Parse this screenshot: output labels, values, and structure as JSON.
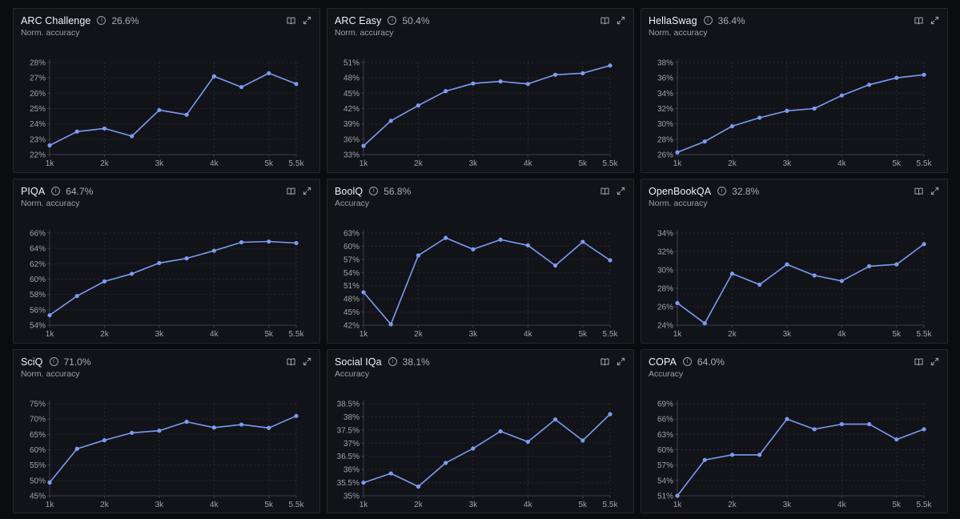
{
  "icons": {
    "info": "info-icon",
    "book": "book-open-icon",
    "expand": "expand-icon"
  },
  "colors": {
    "line": "#7c9cf2",
    "grid": "#262833",
    "axis": "#3a3d49",
    "tick_text": "#9ea3ae"
  },
  "panels": [
    {
      "title": "ARC Challenge",
      "score": "26.6%",
      "subtitle": "Norm. accuracy"
    },
    {
      "title": "ARC Easy",
      "score": "50.4%",
      "subtitle": "Norm. accuracy"
    },
    {
      "title": "HellaSwag",
      "score": "36.4%",
      "subtitle": "Norm. accuracy"
    },
    {
      "title": "PIQA",
      "score": "64.7%",
      "subtitle": "Norm. accuracy"
    },
    {
      "title": "BoolQ",
      "score": "56.8%",
      "subtitle": "Accuracy"
    },
    {
      "title": "OpenBookQA",
      "score": "32.8%",
      "subtitle": "Norm. accuracy"
    },
    {
      "title": "SciQ",
      "score": "71.0%",
      "subtitle": "Norm. accuracy"
    },
    {
      "title": "Social IQa",
      "score": "38.1%",
      "subtitle": "Accuracy"
    },
    {
      "title": "COPA",
      "score": "64.0%",
      "subtitle": "Accuracy"
    }
  ],
  "chart_data": [
    {
      "type": "line",
      "title": "ARC Challenge",
      "x": [
        1000,
        1500,
        2000,
        2500,
        3000,
        3500,
        4000,
        4500,
        5000,
        5500
      ],
      "x_ticks": [
        1000,
        2000,
        3000,
        4000,
        5000,
        5500
      ],
      "x_tick_labels": [
        "1k",
        "2k",
        "3k",
        "4k",
        "5k",
        "5.5k"
      ],
      "y": [
        22.6,
        23.5,
        23.7,
        23.2,
        24.9,
        24.6,
        27.1,
        26.4,
        27.3,
        26.6
      ],
      "ylim": [
        22,
        28
      ],
      "y_ticks": [
        22,
        23,
        24,
        25,
        26,
        27,
        28
      ],
      "y_tick_labels": [
        "22%",
        "23%",
        "24%",
        "25%",
        "26%",
        "27%",
        "28%"
      ],
      "grid": true
    },
    {
      "type": "line",
      "title": "ARC Easy",
      "x": [
        1000,
        1500,
        2000,
        2500,
        3000,
        3500,
        4000,
        4500,
        5000,
        5500
      ],
      "x_ticks": [
        1000,
        2000,
        3000,
        4000,
        5000,
        5500
      ],
      "x_tick_labels": [
        "1k",
        "2k",
        "3k",
        "4k",
        "5k",
        "5.5k"
      ],
      "y": [
        34.7,
        39.6,
        42.6,
        45.4,
        46.9,
        47.3,
        46.8,
        48.6,
        48.9,
        50.4
      ],
      "ylim": [
        33,
        51
      ],
      "y_ticks": [
        33,
        36,
        39,
        42,
        45,
        48,
        51
      ],
      "y_tick_labels": [
        "33%",
        "36%",
        "39%",
        "42%",
        "45%",
        "48%",
        "51%"
      ],
      "grid": true
    },
    {
      "type": "line",
      "title": "HellaSwag",
      "x": [
        1000,
        1500,
        2000,
        2500,
        3000,
        3500,
        4000,
        4500,
        5000,
        5500
      ],
      "x_ticks": [
        1000,
        2000,
        3000,
        4000,
        5000,
        5500
      ],
      "x_tick_labels": [
        "1k",
        "2k",
        "3k",
        "4k",
        "5k",
        "5.5k"
      ],
      "y": [
        26.3,
        27.7,
        29.7,
        30.8,
        31.7,
        32.0,
        33.7,
        35.1,
        36.0,
        36.4
      ],
      "ylim": [
        26,
        38
      ],
      "y_ticks": [
        26,
        28,
        30,
        32,
        34,
        36,
        38
      ],
      "y_tick_labels": [
        "26%",
        "28%",
        "30%",
        "32%",
        "34%",
        "36%",
        "38%"
      ],
      "grid": true
    },
    {
      "type": "line",
      "title": "PIQA",
      "x": [
        1000,
        1500,
        2000,
        2500,
        3000,
        3500,
        4000,
        4500,
        5000,
        5500
      ],
      "x_ticks": [
        1000,
        2000,
        3000,
        4000,
        5000,
        5500
      ],
      "x_tick_labels": [
        "1k",
        "2k",
        "3k",
        "4k",
        "5k",
        "5.5k"
      ],
      "y": [
        55.3,
        57.8,
        59.7,
        60.7,
        62.1,
        62.7,
        63.7,
        64.8,
        64.9,
        64.7
      ],
      "ylim": [
        54,
        66
      ],
      "y_ticks": [
        54,
        56,
        58,
        60,
        62,
        64,
        66
      ],
      "y_tick_labels": [
        "54%",
        "56%",
        "58%",
        "60%",
        "62%",
        "64%",
        "66%"
      ],
      "grid": true
    },
    {
      "type": "line",
      "title": "BoolQ",
      "x": [
        1000,
        1500,
        2000,
        2500,
        3000,
        3500,
        4000,
        4500,
        5000,
        5500
      ],
      "x_ticks": [
        1000,
        2000,
        3000,
        4000,
        5000,
        5500
      ],
      "x_tick_labels": [
        "1k",
        "2k",
        "3k",
        "4k",
        "5k",
        "5.5k"
      ],
      "y": [
        49.5,
        42.2,
        57.9,
        61.9,
        59.3,
        61.5,
        60.2,
        55.6,
        61.0,
        56.8
      ],
      "ylim": [
        42,
        63
      ],
      "y_ticks": [
        42,
        45,
        48,
        51,
        54,
        57,
        60,
        63
      ],
      "y_tick_labels": [
        "42%",
        "45%",
        "48%",
        "51%",
        "54%",
        "57%",
        "60%",
        "63%"
      ],
      "grid": true
    },
    {
      "type": "line",
      "title": "OpenBookQA",
      "x": [
        1000,
        1500,
        2000,
        2500,
        3000,
        3500,
        4000,
        4500,
        5000,
        5500
      ],
      "x_ticks": [
        1000,
        2000,
        3000,
        4000,
        5000,
        5500
      ],
      "x_tick_labels": [
        "1k",
        "2k",
        "3k",
        "4k",
        "5k",
        "5.5k"
      ],
      "y": [
        26.4,
        24.2,
        29.6,
        28.4,
        30.6,
        29.4,
        28.8,
        30.4,
        30.6,
        32.8
      ],
      "ylim": [
        24,
        34
      ],
      "y_ticks": [
        24,
        26,
        28,
        30,
        32,
        34
      ],
      "y_tick_labels": [
        "24%",
        "26%",
        "28%",
        "30%",
        "32%",
        "34%"
      ],
      "grid": true
    },
    {
      "type": "line",
      "title": "SciQ",
      "x": [
        1000,
        1500,
        2000,
        2500,
        3000,
        3500,
        4000,
        4500,
        5000,
        5500
      ],
      "x_ticks": [
        1000,
        2000,
        3000,
        4000,
        5000,
        5500
      ],
      "x_tick_labels": [
        "1k",
        "2k",
        "3k",
        "4k",
        "5k",
        "5.5k"
      ],
      "y": [
        49.3,
        60.3,
        63.1,
        65.5,
        66.2,
        69.1,
        67.2,
        68.2,
        67.1,
        71.0
      ],
      "ylim": [
        45,
        75
      ],
      "y_ticks": [
        45,
        50,
        55,
        60,
        65,
        70,
        75
      ],
      "y_tick_labels": [
        "45%",
        "50%",
        "55%",
        "60%",
        "65%",
        "70%",
        "75%"
      ],
      "grid": true
    },
    {
      "type": "line",
      "title": "Social IQa",
      "x": [
        1000,
        1500,
        2000,
        2500,
        3000,
        3500,
        4000,
        4500,
        5000,
        5500
      ],
      "x_ticks": [
        1000,
        2000,
        3000,
        4000,
        5000,
        5500
      ],
      "x_tick_labels": [
        "1k",
        "2k",
        "3k",
        "4k",
        "5k",
        "5.5k"
      ],
      "y": [
        35.5,
        35.85,
        35.35,
        36.25,
        36.8,
        37.45,
        37.05,
        37.9,
        37.1,
        38.1
      ],
      "ylim": [
        35,
        38.5
      ],
      "y_ticks": [
        35,
        35.5,
        36,
        36.5,
        37,
        37.5,
        38,
        38.5
      ],
      "y_tick_labels": [
        "35%",
        "35.5%",
        "36%",
        "36.5%",
        "37%",
        "37.5%",
        "38%",
        "38.5%"
      ],
      "grid": true
    },
    {
      "type": "line",
      "title": "COPA",
      "x": [
        1000,
        1500,
        2000,
        2500,
        3000,
        3500,
        4000,
        4500,
        5000,
        5500
      ],
      "x_ticks": [
        1000,
        2000,
        3000,
        4000,
        5000,
        5500
      ],
      "x_tick_labels": [
        "1k",
        "2k",
        "3k",
        "4k",
        "5k",
        "5.5k"
      ],
      "y": [
        51,
        58,
        59,
        59,
        66,
        64,
        65,
        65,
        62,
        64
      ],
      "ylim": [
        51,
        69
      ],
      "y_ticks": [
        51,
        54,
        57,
        60,
        63,
        66,
        69
      ],
      "y_tick_labels": [
        "51%",
        "54%",
        "57%",
        "60%",
        "63%",
        "66%",
        "69%"
      ],
      "grid": true
    }
  ]
}
